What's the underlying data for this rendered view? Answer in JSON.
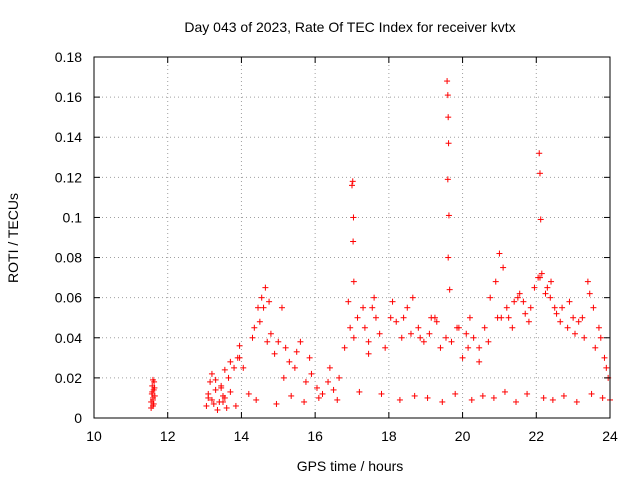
{
  "chart_data": {
    "type": "scatter",
    "title": "Day 043 of 2023, Rate Of TEC Index for receiver kvtx",
    "xlabel": "GPS time / hours",
    "ylabel": "ROTI / TECUs",
    "xlim": [
      10,
      24
    ],
    "ylim": [
      0,
      0.18
    ],
    "xticks": [
      "10",
      "12",
      "14",
      "16",
      "18",
      "20",
      "22",
      "24"
    ],
    "yticks": [
      "0",
      "0.02",
      "0.04",
      "0.06",
      "0.08",
      "0.1",
      "0.12",
      "0.14",
      "0.16",
      "0.18"
    ],
    "grid": true,
    "marker": "+",
    "color": "#ff0000",
    "series": [
      {
        "x": [
          11.55,
          11.57,
          11.58,
          11.6,
          11.6,
          11.62,
          11.63,
          11.65,
          11.55,
          11.6,
          11.62,
          11.58,
          11.64,
          11.6,
          13.05,
          13.1,
          13.2,
          13.3,
          13.4,
          13.5,
          13.6,
          13.7,
          13.15,
          13.25,
          13.45,
          13.55,
          13.65,
          13.35,
          13.2,
          13.45,
          13.55,
          13.3,
          13.7,
          13.9,
          13.95,
          14.05,
          14.3,
          14.45,
          14.5,
          14.55,
          14.65,
          14.7,
          14.8,
          14.9,
          15.0,
          15.1,
          15.2,
          15.3,
          15.45,
          15.6,
          15.75,
          15.9,
          16.05,
          16.2,
          16.35,
          16.5,
          16.65,
          16.8,
          16.95,
          17.05,
          17.15,
          17.3,
          17.45,
          17.6,
          17.75,
          17.9,
          18.05,
          18.2,
          18.35,
          18.5,
          18.65,
          18.8,
          18.95,
          19.1,
          19.25,
          19.4,
          19.55,
          19.7,
          19.85,
          20.0,
          20.15,
          20.3,
          20.45,
          20.6,
          20.75,
          20.9,
          21.05,
          21.2,
          21.35,
          21.5,
          21.65,
          21.8,
          21.95,
          22.1,
          22.25,
          22.4,
          22.55,
          22.7,
          22.85,
          23.0,
          23.15,
          23.3,
          23.45,
          23.6,
          23.75,
          23.9,
          14.6,
          14.75,
          14.35,
          13.95,
          13.8,
          15.15,
          15.5,
          15.85,
          16.4,
          16.9,
          17.0,
          17.02,
          17.04,
          17.03,
          17.05,
          17.35,
          17.45,
          17.55,
          17.65,
          18.1,
          18.4,
          18.6,
          18.85,
          19.15,
          19.3,
          19.58,
          19.6,
          19.61,
          19.62,
          19.6,
          19.63,
          19.61,
          19.65,
          19.9,
          20.1,
          20.2,
          20.45,
          20.7,
          20.95,
          21.0,
          21.1,
          21.25,
          21.4,
          21.55,
          21.7,
          21.85,
          22.05,
          22.08,
          22.1,
          22.12,
          22.15,
          22.3,
          22.38,
          22.5,
          22.65,
          22.9,
          23.05,
          23.25,
          23.4,
          23.55,
          23.7,
          23.85,
          23.95,
          13.1,
          13.5,
          13.85,
          14.2,
          14.4,
          14.95,
          15.35,
          15.7,
          16.1,
          16.6,
          17.2,
          17.8,
          18.3,
          18.7,
          19.05,
          19.45,
          19.8,
          20.25,
          20.55,
          20.85,
          21.15,
          21.45,
          21.75,
          22.2,
          22.45,
          22.75,
          23.1,
          23.5,
          23.8,
          24.0
        ],
        "y": [
          0.008,
          0.012,
          0.016,
          0.01,
          0.006,
          0.014,
          0.018,
          0.011,
          0.005,
          0.009,
          0.007,
          0.013,
          0.015,
          0.019,
          0.006,
          0.012,
          0.009,
          0.014,
          0.008,
          0.011,
          0.005,
          0.013,
          0.018,
          0.007,
          0.016,
          0.01,
          0.02,
          0.004,
          0.022,
          0.015,
          0.024,
          0.019,
          0.028,
          0.03,
          0.036,
          0.025,
          0.04,
          0.055,
          0.048,
          0.06,
          0.065,
          0.038,
          0.042,
          0.032,
          0.038,
          0.055,
          0.035,
          0.028,
          0.025,
          0.038,
          0.018,
          0.022,
          0.015,
          0.012,
          0.018,
          0.014,
          0.02,
          0.035,
          0.045,
          0.04,
          0.05,
          0.055,
          0.038,
          0.06,
          0.042,
          0.035,
          0.05,
          0.048,
          0.04,
          0.055,
          0.06,
          0.045,
          0.038,
          0.042,
          0.05,
          0.035,
          0.04,
          0.038,
          0.045,
          0.03,
          0.035,
          0.04,
          0.028,
          0.045,
          0.06,
          0.068,
          0.05,
          0.055,
          0.045,
          0.06,
          0.058,
          0.048,
          0.065,
          0.07,
          0.062,
          0.068,
          0.052,
          0.055,
          0.045,
          0.05,
          0.048,
          0.04,
          0.062,
          0.035,
          0.04,
          0.025,
          0.055,
          0.058,
          0.045,
          0.03,
          0.025,
          0.02,
          0.033,
          0.03,
          0.025,
          0.058,
          0.116,
          0.118,
          0.1,
          0.088,
          0.068,
          0.045,
          0.032,
          0.055,
          0.05,
          0.058,
          0.05,
          0.042,
          0.04,
          0.05,
          0.048,
          0.168,
          0.161,
          0.15,
          0.137,
          0.119,
          0.101,
          0.08,
          0.064,
          0.045,
          0.042,
          0.05,
          0.035,
          0.038,
          0.05,
          0.082,
          0.075,
          0.05,
          0.058,
          0.062,
          0.052,
          0.055,
          0.07,
          0.132,
          0.122,
          0.099,
          0.072,
          0.065,
          0.06,
          0.055,
          0.048,
          0.058,
          0.042,
          0.05,
          0.068,
          0.055,
          0.045,
          0.03,
          0.02,
          0.01,
          0.008,
          0.006,
          0.012,
          0.009,
          0.007,
          0.011,
          0.008,
          0.01,
          0.009,
          0.013,
          0.012,
          0.009,
          0.011,
          0.01,
          0.008,
          0.012,
          0.009,
          0.011,
          0.01,
          0.013,
          0.008,
          0.012,
          0.01,
          0.009,
          0.011,
          0.008,
          0.012,
          0.01,
          0.009
        ]
      }
    ]
  }
}
